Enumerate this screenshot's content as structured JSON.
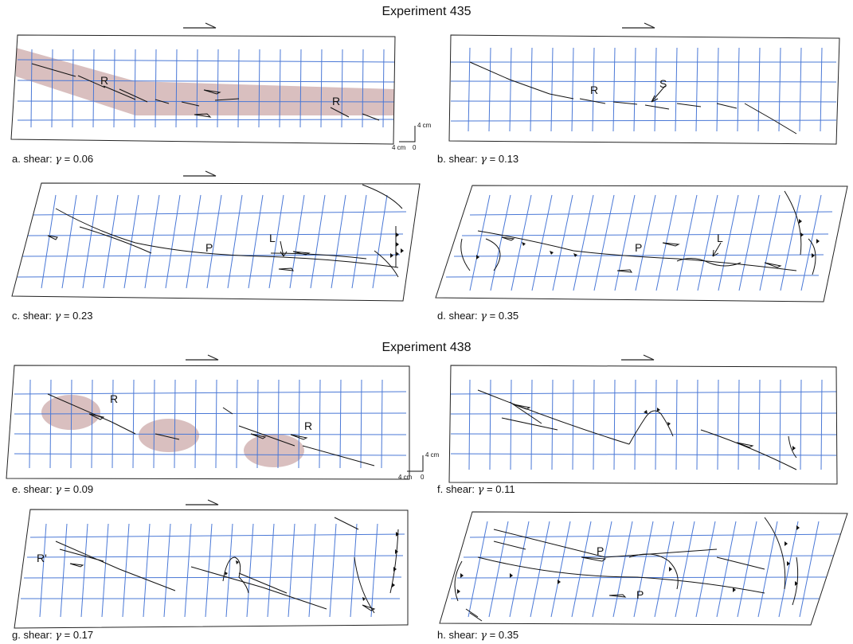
{
  "experiments": [
    {
      "title": "Experiment 435"
    },
    {
      "title": "Experiment 438"
    }
  ],
  "captions": {
    "prefix": "shear:",
    "symbol": "γ",
    "panels": [
      {
        "letter": "a.",
        "value": "0.06"
      },
      {
        "letter": "b.",
        "value": "0.13"
      },
      {
        "letter": "c.",
        "value": "0.23"
      },
      {
        "letter": "d.",
        "value": "0.35"
      },
      {
        "letter": "e.",
        "value": "0.09"
      },
      {
        "letter": "f.",
        "value": "0.11"
      },
      {
        "letter": "g.",
        "value": "0.17"
      },
      {
        "letter": "h.",
        "value": "0.35"
      }
    ]
  },
  "labels": {
    "r": "R",
    "s": "S",
    "p": "P",
    "l": "L",
    "r1": "R'"
  },
  "scale_bar": {
    "vertical": "4 cm",
    "horizontal": "4 cm",
    "origin": "0"
  },
  "colors": {
    "grid": "#4a78d6",
    "highlight": "#b98a8a",
    "outline": "#222222",
    "fault": "#111111"
  }
}
